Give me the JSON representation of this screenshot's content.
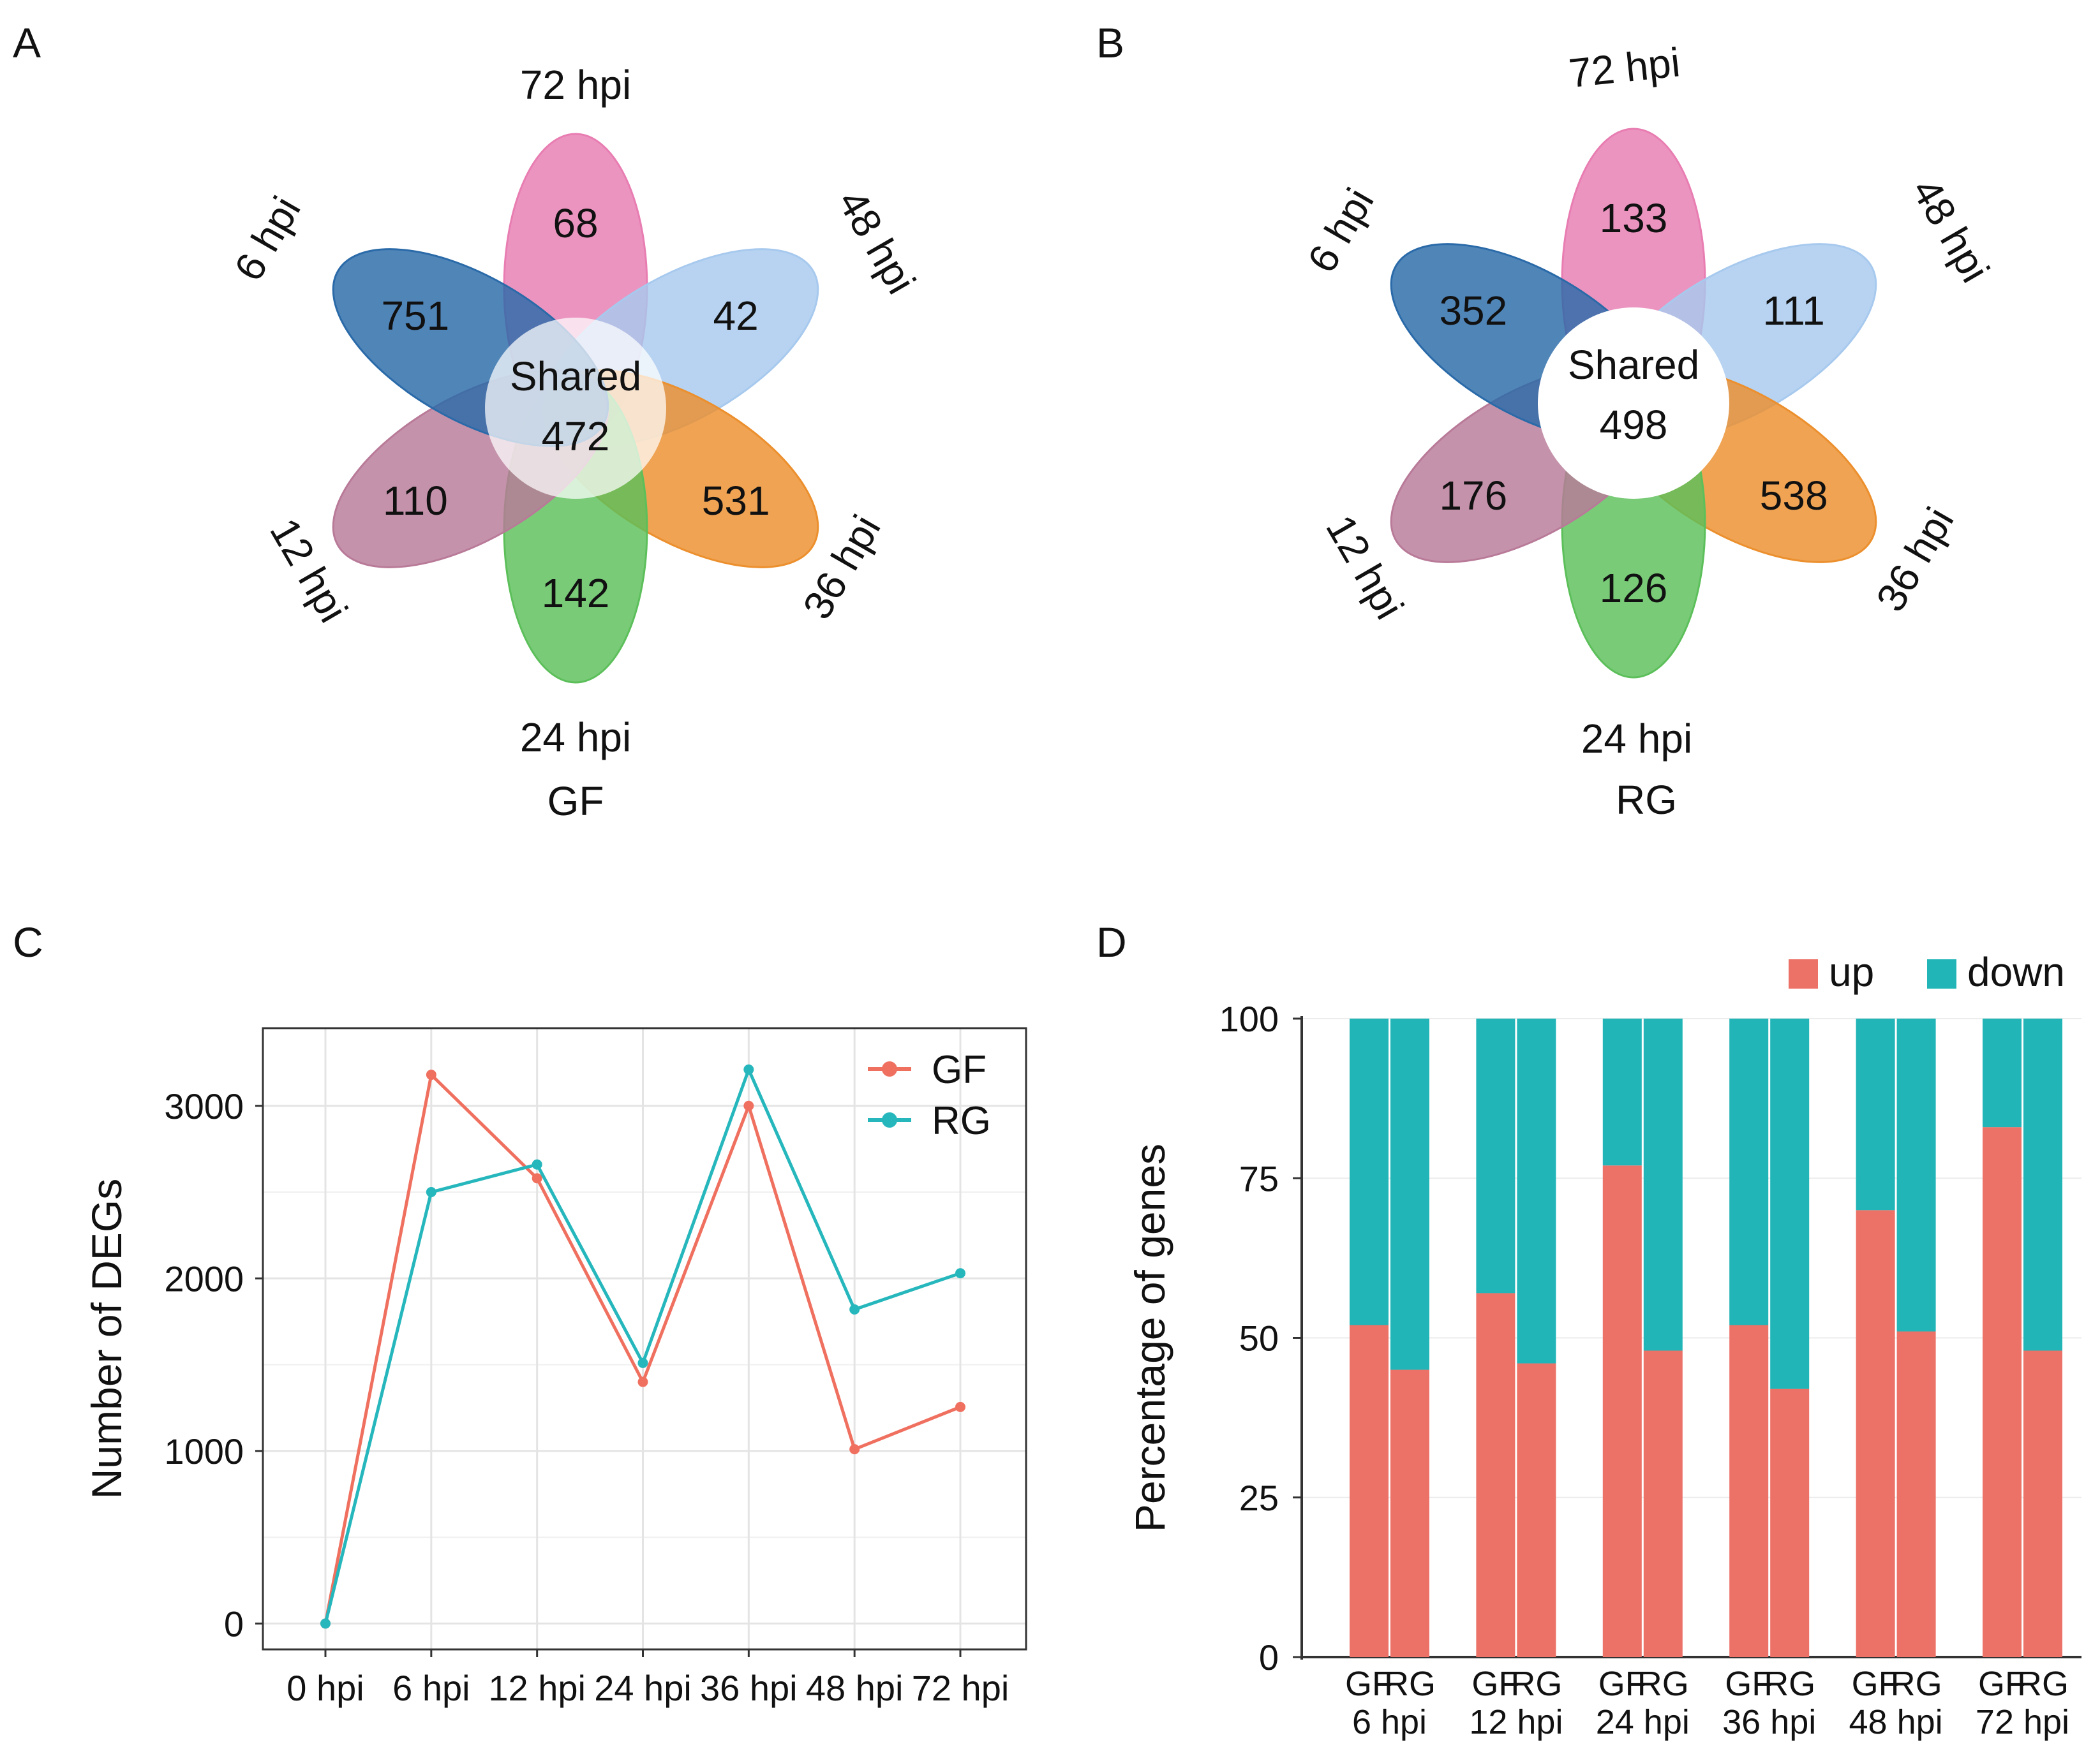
{
  "panel_labels": {
    "a": "A",
    "b": "B",
    "c": "C",
    "d": "D"
  },
  "colors": {
    "p6": "#2a6aa8",
    "p72": "#e87db2",
    "p48": "#a7c9ee",
    "p36": "#ec8f2d",
    "p24": "#5cbf5a",
    "p12": "#b87a98",
    "gf": "#f07060",
    "rg": "#26b7bd",
    "up": "#ec7166",
    "down": "#21b5b8"
  },
  "chart_data": [
    {
      "type": "venn",
      "panel": "A",
      "group": "GF",
      "center_label": "Shared",
      "shared": "472",
      "petals": [
        {
          "label": "72 hpi",
          "value": "68"
        },
        {
          "label": "48 hpi",
          "value": "42"
        },
        {
          "label": "36 hpi",
          "value": "531"
        },
        {
          "label": "24 hpi",
          "value": "142"
        },
        {
          "label": "12 hpi",
          "value": "110"
        },
        {
          "label": "6 hpi",
          "value": "751"
        }
      ]
    },
    {
      "type": "venn",
      "panel": "B",
      "group": "RG",
      "center_label": "Shared",
      "shared": "498",
      "petals": [
        {
          "label": "72 hpi",
          "value": "133"
        },
        {
          "label": "48 hpi",
          "value": "111"
        },
        {
          "label": "36 hpi",
          "value": "538"
        },
        {
          "label": "24 hpi",
          "value": "126"
        },
        {
          "label": "12 hpi",
          "value": "176"
        },
        {
          "label": "6 hpi",
          "value": "352"
        }
      ]
    },
    {
      "type": "line",
      "panel": "C",
      "ylabel": "Number of DEGs",
      "xlabel": "",
      "categories": [
        "0 hpi",
        "6 hpi",
        "12 hpi",
        "24 hpi",
        "36 hpi",
        "48 hpi",
        "72 hpi"
      ],
      "ylim": [
        -150,
        3450
      ],
      "yticks": [
        0,
        1000,
        2000,
        3000
      ],
      "grid": true,
      "legend_position": "top-right",
      "series": [
        {
          "name": "GF",
          "values": [
            0,
            3180,
            2580,
            1400,
            3000,
            1010,
            1255
          ]
        },
        {
          "name": "RG",
          "values": [
            0,
            2500,
            2660,
            1510,
            3210,
            1820,
            2030
          ]
        }
      ]
    },
    {
      "type": "bar",
      "stacked": true,
      "panel": "D",
      "ylabel": "Percentage of genes",
      "ylim": [
        0,
        100
      ],
      "yticks": [
        0,
        25,
        50,
        75,
        100
      ],
      "legend_position": "top-right",
      "groups": [
        "6 hpi",
        "12 hpi",
        "24 hpi",
        "36 hpi",
        "48 hpi",
        "72 hpi"
      ],
      "subcategories": [
        "GF",
        "RG"
      ],
      "series": [
        {
          "name": "up",
          "values": [
            [
              52,
              45
            ],
            [
              57,
              46
            ],
            [
              77,
              48
            ],
            [
              52,
              42
            ],
            [
              70,
              51
            ],
            [
              83,
              48
            ]
          ]
        },
        {
          "name": "down",
          "values": [
            [
              48,
              55
            ],
            [
              43,
              54
            ],
            [
              23,
              52
            ],
            [
              48,
              58
            ],
            [
              30,
              49
            ],
            [
              17,
              52
            ]
          ]
        }
      ]
    }
  ]
}
